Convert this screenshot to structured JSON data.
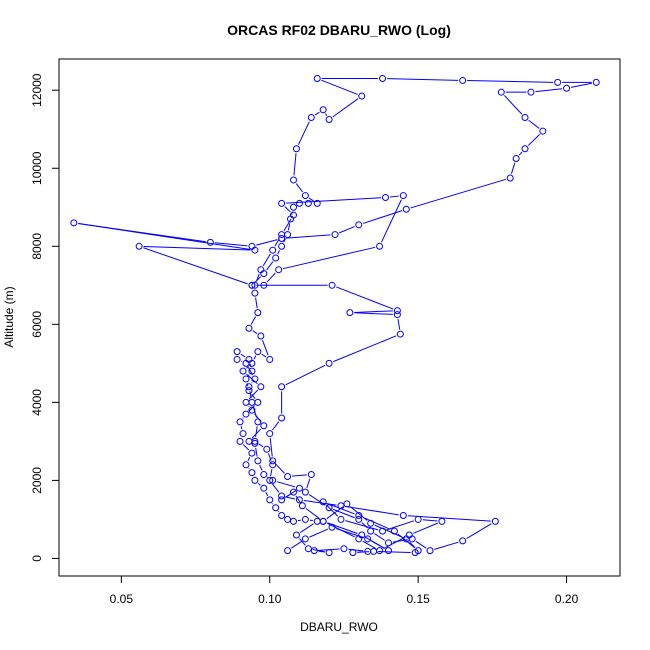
{
  "chart_data": {
    "type": "line",
    "title": "ORCAS RF02 DBARU_RWO (Log)",
    "xlabel": "DBARU_RWO",
    "ylabel": "Altitude (m)",
    "xlim": [
      0.029,
      0.218
    ],
    "ylim": [
      -450,
      12800
    ],
    "xticks": [
      0.05,
      0.1,
      0.15,
      0.2
    ],
    "xtick_labels": [
      "0.05",
      "0.10",
      "0.15",
      "0.20"
    ],
    "yticks": [
      0,
      2000,
      4000,
      6000,
      8000,
      10000,
      12000
    ],
    "ytick_labels": [
      "0",
      "2000",
      "4000",
      "6000",
      "8000",
      "10000",
      "12000"
    ],
    "grid": false,
    "colors": {
      "series": "#0000ff",
      "axis": "#000000"
    },
    "series": [
      {
        "marker": "open-circle",
        "points": [
          [
            0.106,
            200
          ],
          [
            0.112,
            500
          ],
          [
            0.121,
            800
          ],
          [
            0.133,
            500
          ],
          [
            0.14,
            200
          ],
          [
            0.131,
            600
          ],
          [
            0.118,
            950
          ],
          [
            0.126,
            1400
          ],
          [
            0.134,
            900
          ],
          [
            0.146,
            500
          ],
          [
            0.15,
            200
          ],
          [
            0.142,
            700
          ],
          [
            0.13,
            1100
          ],
          [
            0.118,
            1450
          ],
          [
            0.124,
            1000
          ],
          [
            0.138,
            700
          ],
          [
            0.15,
            1000
          ],
          [
            0.158,
            950
          ],
          [
            0.147,
            600
          ],
          [
            0.137,
            200
          ],
          [
            0.13,
            500
          ],
          [
            0.118,
            950
          ],
          [
            0.111,
            1350
          ],
          [
            0.108,
            1700
          ],
          [
            0.104,
            1500
          ],
          [
            0.11,
            1800
          ],
          [
            0.101,
            2000
          ],
          [
            0.098,
            2150
          ],
          [
            0.096,
            2500
          ],
          [
            0.095,
            2950
          ],
          [
            0.093,
            3000
          ],
          [
            0.098,
            3400
          ],
          [
            0.094,
            3800
          ],
          [
            0.092,
            4000
          ],
          [
            0.097,
            4400
          ],
          [
            0.091,
            4800
          ],
          [
            0.094,
            5000
          ],
          [
            0.096,
            5300
          ],
          [
            0.1,
            5100
          ],
          [
            0.097,
            5700
          ],
          [
            0.093,
            5900
          ],
          [
            0.096,
            6300
          ],
          [
            0.095,
            6800
          ],
          [
            0.094,
            7000
          ],
          [
            0.098,
            7300
          ],
          [
            0.102,
            7700
          ],
          [
            0.104,
            8000
          ],
          [
            0.106,
            8300
          ],
          [
            0.107,
            8700
          ],
          [
            0.108,
            9000
          ],
          [
            0.11,
            9100
          ],
          [
            0.113,
            9100
          ],
          [
            0.116,
            9100
          ],
          [
            0.112,
            9300
          ],
          [
            0.108,
            9700
          ],
          [
            0.109,
            10500
          ],
          [
            0.114,
            11300
          ],
          [
            0.118,
            11500
          ],
          [
            0.12,
            11250
          ],
          [
            0.131,
            11850
          ],
          [
            0.116,
            12300
          ],
          [
            0.138,
            12300
          ],
          [
            0.165,
            12250
          ],
          [
            0.197,
            12200
          ],
          [
            0.21,
            12200
          ],
          [
            0.2,
            12050
          ],
          [
            0.188,
            11950
          ],
          [
            0.178,
            11950
          ],
          [
            0.186,
            11300
          ],
          [
            0.192,
            10950
          ],
          [
            0.186,
            10500
          ],
          [
            0.183,
            10250
          ],
          [
            0.181,
            9750
          ],
          [
            0.146,
            8950
          ],
          [
            0.13,
            8550
          ],
          [
            0.122,
            8300
          ],
          [
            0.104,
            8200
          ],
          [
            0.094,
            8000
          ],
          [
            0.08,
            8100
          ],
          [
            0.034,
            8600
          ],
          [
            0.095,
            7900
          ],
          [
            0.056,
            8000
          ],
          [
            0.094,
            7000
          ],
          [
            0.098,
            7000
          ],
          [
            0.103,
            7400
          ],
          [
            0.137,
            8000
          ],
          [
            0.145,
            9300
          ],
          [
            0.139,
            9250
          ],
          [
            0.104,
            9100
          ],
          [
            0.108,
            8800
          ],
          [
            0.104,
            8300
          ],
          [
            0.101,
            7900
          ],
          [
            0.097,
            7400
          ],
          [
            0.095,
            7000
          ],
          [
            0.121,
            7000
          ],
          [
            0.143,
            6350
          ],
          [
            0.127,
            6300
          ],
          [
            0.143,
            6250
          ],
          [
            0.144,
            5750
          ],
          [
            0.12,
            5000
          ],
          [
            0.104,
            4400
          ],
          [
            0.104,
            3600
          ],
          [
            0.1,
            3200
          ],
          [
            0.101,
            2500
          ],
          [
            0.106,
            2100
          ],
          [
            0.114,
            2150
          ],
          [
            0.112,
            1700
          ],
          [
            0.12,
            1300
          ],
          [
            0.13,
            1000
          ],
          [
            0.134,
            700
          ],
          [
            0.14,
            400
          ],
          [
            0.148,
            500
          ],
          [
            0.154,
            200
          ],
          [
            0.165,
            450
          ],
          [
            0.176,
            950
          ],
          [
            0.145,
            1100
          ],
          [
            0.124,
            1350
          ],
          [
            0.11,
            1500
          ],
          [
            0.104,
            1600
          ],
          [
            0.1,
            2000
          ],
          [
            0.101,
            2400
          ],
          [
            0.099,
            2800
          ],
          [
            0.095,
            3000
          ],
          [
            0.096,
            3500
          ],
          [
            0.094,
            4000
          ],
          [
            0.093,
            4400
          ],
          [
            0.095,
            4600
          ],
          [
            0.092,
            5000
          ],
          [
            0.089,
            5100
          ],
          [
            0.089,
            5300
          ],
          [
            0.093,
            5100
          ],
          [
            0.094,
            4800
          ],
          [
            0.092,
            4600
          ],
          [
            0.093,
            4300
          ],
          [
            0.096,
            4000
          ],
          [
            0.092,
            3700
          ],
          [
            0.09,
            3500
          ],
          [
            0.091,
            3200
          ],
          [
            0.09,
            3000
          ],
          [
            0.094,
            2700
          ],
          [
            0.092,
            2400
          ],
          [
            0.094,
            2200
          ],
          [
            0.095,
            2000
          ],
          [
            0.098,
            1800
          ],
          [
            0.1,
            1500
          ],
          [
            0.102,
            1300
          ],
          [
            0.104,
            1100
          ],
          [
            0.106,
            1000
          ],
          [
            0.108,
            950
          ],
          [
            0.112,
            1000
          ],
          [
            0.116,
            950
          ],
          [
            0.109,
            600
          ],
          [
            0.113,
            250
          ],
          [
            0.12,
            150
          ],
          [
            0.115,
            200
          ],
          [
            0.125,
            250
          ],
          [
            0.133,
            180
          ],
          [
            0.128,
            150
          ],
          [
            0.135,
            180
          ],
          [
            0.149,
            150
          ]
        ]
      }
    ]
  }
}
